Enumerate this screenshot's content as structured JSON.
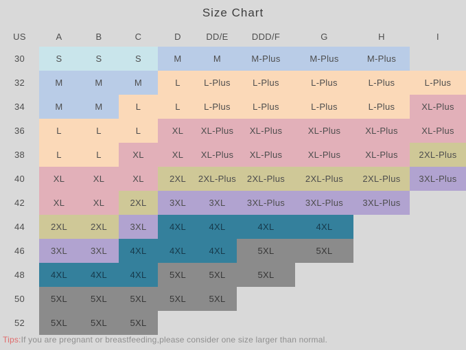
{
  "title": "Size Chart",
  "background": "#d9d9d9",
  "chart_data": {
    "type": "table",
    "title": "Size Chart",
    "columns": [
      "US",
      "A",
      "B",
      "C",
      "D",
      "DD/E",
      "DDD/F",
      "G",
      "H",
      "I"
    ],
    "rows": [
      {
        "us": "30",
        "cells": [
          "S",
          "S",
          "S",
          "M",
          "M",
          "M-Plus",
          "M-Plus",
          "M-Plus",
          ""
        ]
      },
      {
        "us": "32",
        "cells": [
          "M",
          "M",
          "M",
          "L",
          "L-Plus",
          "L-Plus",
          "L-Plus",
          "L-Plus",
          "L-Plus"
        ]
      },
      {
        "us": "34",
        "cells": [
          "M",
          "M",
          "L",
          "L",
          "L-Plus",
          "L-Plus",
          "L-Plus",
          "L-Plus",
          "XL-Plus"
        ]
      },
      {
        "us": "36",
        "cells": [
          "L",
          "L",
          "L",
          "XL",
          "XL-Plus",
          "XL-Plus",
          "XL-Plus",
          "XL-Plus",
          "XL-Plus"
        ]
      },
      {
        "us": "38",
        "cells": [
          "L",
          "L",
          "XL",
          "XL",
          "XL-Plus",
          "XL-Plus",
          "XL-Plus",
          "XL-Plus",
          "2XL-Plus"
        ]
      },
      {
        "us": "40",
        "cells": [
          "XL",
          "XL",
          "XL",
          "2XL",
          "2XL-Plus",
          "2XL-Plus",
          "2XL-Plus",
          "2XL-Plus",
          "3XL-Plus"
        ]
      },
      {
        "us": "42",
        "cells": [
          "XL",
          "XL",
          "2XL",
          "3XL",
          "3XL",
          "3XL-Plus",
          "3XL-Plus",
          "3XL-Plus",
          ""
        ]
      },
      {
        "us": "44",
        "cells": [
          "2XL",
          "2XL",
          "3XL",
          "4XL",
          "4XL",
          "4XL",
          "4XL",
          "",
          ""
        ]
      },
      {
        "us": "46",
        "cells": [
          "3XL",
          "3XL",
          "4XL",
          "4XL",
          "4XL",
          "5XL",
          "5XL",
          "",
          ""
        ]
      },
      {
        "us": "48",
        "cells": [
          "4XL",
          "4XL",
          "4XL",
          "5XL",
          "5XL",
          "5XL",
          "",
          "",
          ""
        ]
      },
      {
        "us": "50",
        "cells": [
          "5XL",
          "5XL",
          "5XL",
          "5XL",
          "5XL",
          "",
          "",
          "",
          ""
        ]
      },
      {
        "us": "52",
        "cells": [
          "5XL",
          "5XL",
          "5XL",
          "",
          "",
          "",
          "",
          "",
          ""
        ]
      }
    ],
    "color_legend": {
      "S": "#c9e5eb",
      "M": "#b9cce7",
      "L": "#fbd9b8",
      "XL": "#e2b0b9",
      "2XL": "#cfc897",
      "3XL": "#b1a3d0",
      "4XL": "#34809c",
      "5XL": "#8b8b8b"
    },
    "text_colors": {
      "default": "#4d4d4d",
      "4XL": "#16394b",
      "5XL": "#373737"
    }
  },
  "tips": {
    "label": "Tips:",
    "text": "If you are pregnant or breastfeeding,please consider one size larger than normal.",
    "label_color": "#e06a6a",
    "text_color": "#8e8e8e"
  }
}
